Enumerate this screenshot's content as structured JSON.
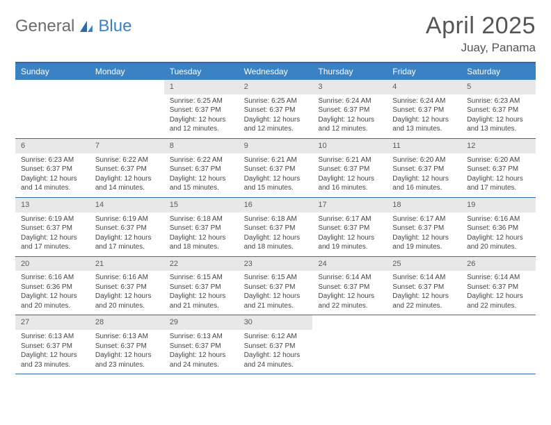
{
  "logo": {
    "text_gray": "General",
    "text_blue": "Blue"
  },
  "header": {
    "month_title": "April 2025",
    "location": "Juay, Panama"
  },
  "colors": {
    "header_bg": "#3b82c4",
    "header_border": "#2f6aa8",
    "daynum_bg": "#e8e8e8",
    "text": "#444444",
    "title_text": "#555555",
    "logo_gray": "#6b6b6b",
    "logo_blue": "#3b82c4"
  },
  "day_names": [
    "Sunday",
    "Monday",
    "Tuesday",
    "Wednesday",
    "Thursday",
    "Friday",
    "Saturday"
  ],
  "weeks": [
    [
      null,
      null,
      {
        "n": "1",
        "sr": "6:25 AM",
        "ss": "6:37 PM",
        "dl": "12 hours and 12 minutes."
      },
      {
        "n": "2",
        "sr": "6:25 AM",
        "ss": "6:37 PM",
        "dl": "12 hours and 12 minutes."
      },
      {
        "n": "3",
        "sr": "6:24 AM",
        "ss": "6:37 PM",
        "dl": "12 hours and 12 minutes."
      },
      {
        "n": "4",
        "sr": "6:24 AM",
        "ss": "6:37 PM",
        "dl": "12 hours and 13 minutes."
      },
      {
        "n": "5",
        "sr": "6:23 AM",
        "ss": "6:37 PM",
        "dl": "12 hours and 13 minutes."
      }
    ],
    [
      {
        "n": "6",
        "sr": "6:23 AM",
        "ss": "6:37 PM",
        "dl": "12 hours and 14 minutes."
      },
      {
        "n": "7",
        "sr": "6:22 AM",
        "ss": "6:37 PM",
        "dl": "12 hours and 14 minutes."
      },
      {
        "n": "8",
        "sr": "6:22 AM",
        "ss": "6:37 PM",
        "dl": "12 hours and 15 minutes."
      },
      {
        "n": "9",
        "sr": "6:21 AM",
        "ss": "6:37 PM",
        "dl": "12 hours and 15 minutes."
      },
      {
        "n": "10",
        "sr": "6:21 AM",
        "ss": "6:37 PM",
        "dl": "12 hours and 16 minutes."
      },
      {
        "n": "11",
        "sr": "6:20 AM",
        "ss": "6:37 PM",
        "dl": "12 hours and 16 minutes."
      },
      {
        "n": "12",
        "sr": "6:20 AM",
        "ss": "6:37 PM",
        "dl": "12 hours and 17 minutes."
      }
    ],
    [
      {
        "n": "13",
        "sr": "6:19 AM",
        "ss": "6:37 PM",
        "dl": "12 hours and 17 minutes."
      },
      {
        "n": "14",
        "sr": "6:19 AM",
        "ss": "6:37 PM",
        "dl": "12 hours and 17 minutes."
      },
      {
        "n": "15",
        "sr": "6:18 AM",
        "ss": "6:37 PM",
        "dl": "12 hours and 18 minutes."
      },
      {
        "n": "16",
        "sr": "6:18 AM",
        "ss": "6:37 PM",
        "dl": "12 hours and 18 minutes."
      },
      {
        "n": "17",
        "sr": "6:17 AM",
        "ss": "6:37 PM",
        "dl": "12 hours and 19 minutes."
      },
      {
        "n": "18",
        "sr": "6:17 AM",
        "ss": "6:37 PM",
        "dl": "12 hours and 19 minutes."
      },
      {
        "n": "19",
        "sr": "6:16 AM",
        "ss": "6:36 PM",
        "dl": "12 hours and 20 minutes."
      }
    ],
    [
      {
        "n": "20",
        "sr": "6:16 AM",
        "ss": "6:36 PM",
        "dl": "12 hours and 20 minutes."
      },
      {
        "n": "21",
        "sr": "6:16 AM",
        "ss": "6:37 PM",
        "dl": "12 hours and 20 minutes."
      },
      {
        "n": "22",
        "sr": "6:15 AM",
        "ss": "6:37 PM",
        "dl": "12 hours and 21 minutes."
      },
      {
        "n": "23",
        "sr": "6:15 AM",
        "ss": "6:37 PM",
        "dl": "12 hours and 21 minutes."
      },
      {
        "n": "24",
        "sr": "6:14 AM",
        "ss": "6:37 PM",
        "dl": "12 hours and 22 minutes."
      },
      {
        "n": "25",
        "sr": "6:14 AM",
        "ss": "6:37 PM",
        "dl": "12 hours and 22 minutes."
      },
      {
        "n": "26",
        "sr": "6:14 AM",
        "ss": "6:37 PM",
        "dl": "12 hours and 22 minutes."
      }
    ],
    [
      {
        "n": "27",
        "sr": "6:13 AM",
        "ss": "6:37 PM",
        "dl": "12 hours and 23 minutes."
      },
      {
        "n": "28",
        "sr": "6:13 AM",
        "ss": "6:37 PM",
        "dl": "12 hours and 23 minutes."
      },
      {
        "n": "29",
        "sr": "6:13 AM",
        "ss": "6:37 PM",
        "dl": "12 hours and 24 minutes."
      },
      {
        "n": "30",
        "sr": "6:12 AM",
        "ss": "6:37 PM",
        "dl": "12 hours and 24 minutes."
      },
      null,
      null,
      null
    ]
  ],
  "labels": {
    "sunrise": "Sunrise:",
    "sunset": "Sunset:",
    "daylight": "Daylight:"
  }
}
